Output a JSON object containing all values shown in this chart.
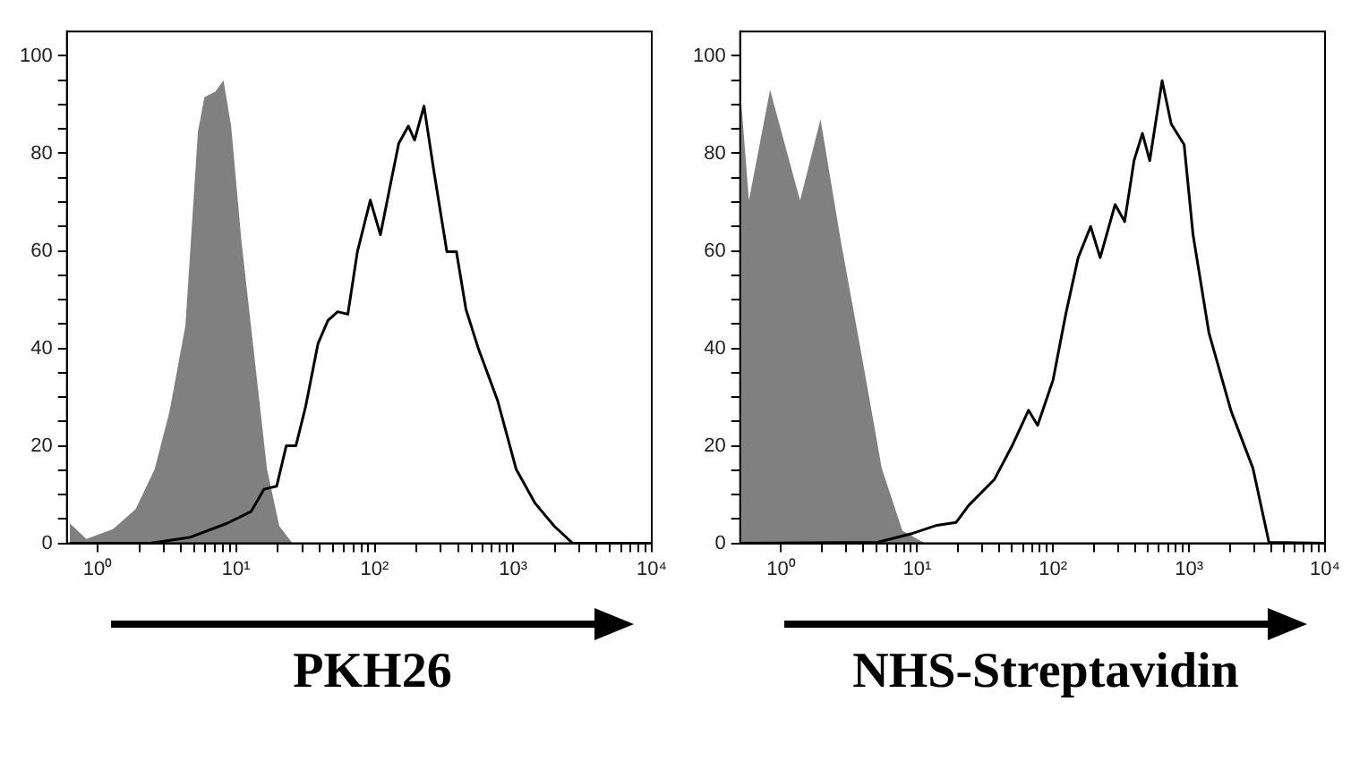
{
  "chart_data": [
    {
      "type": "area",
      "xlabel": "PKH26",
      "log": "x",
      "grid": false,
      "xlim": [
        0.63,
        10000
      ],
      "ylim": [
        0,
        105
      ],
      "xticks": [
        {
          "value": 1,
          "label": "10⁰"
        },
        {
          "value": 2,
          "label": null
        },
        {
          "value": 3,
          "label": null
        },
        {
          "value": 4,
          "label": null
        },
        {
          "value": 5,
          "label": null
        },
        {
          "value": 6,
          "label": null
        },
        {
          "value": 7,
          "label": null
        },
        {
          "value": 8,
          "label": null
        },
        {
          "value": 9,
          "label": null
        },
        {
          "value": 10,
          "label": "10¹"
        },
        {
          "value": 20,
          "label": null
        },
        {
          "value": 30,
          "label": null
        },
        {
          "value": 40,
          "label": null
        },
        {
          "value": 50,
          "label": null
        },
        {
          "value": 60,
          "label": null
        },
        {
          "value": 70,
          "label": null
        },
        {
          "value": 80,
          "label": null
        },
        {
          "value": 90,
          "label": null
        },
        {
          "value": 100,
          "label": "10²"
        },
        {
          "value": 200,
          "label": null
        },
        {
          "value": 300,
          "label": null
        },
        {
          "value": 400,
          "label": null
        },
        {
          "value": 500,
          "label": null
        },
        {
          "value": 600,
          "label": null
        },
        {
          "value": 700,
          "label": null
        },
        {
          "value": 800,
          "label": null
        },
        {
          "value": 900,
          "label": null
        },
        {
          "value": 1000,
          "label": "10³"
        },
        {
          "value": 2000,
          "label": null
        },
        {
          "value": 3000,
          "label": null
        },
        {
          "value": 4000,
          "label": null
        },
        {
          "value": 5000,
          "label": null
        },
        {
          "value": 6000,
          "label": null
        },
        {
          "value": 7000,
          "label": null
        },
        {
          "value": 8000,
          "label": null
        },
        {
          "value": 9000,
          "label": null
        },
        {
          "value": 10000,
          "label": "10⁴"
        }
      ],
      "yticks": [
        0,
        {
          "value": 5,
          "label": null
        },
        {
          "value": 10,
          "label": null
        },
        {
          "value": 15,
          "label": null
        },
        20,
        {
          "value": 25,
          "label": null
        },
        {
          "value": 30,
          "label": null
        },
        {
          "value": 35,
          "label": null
        },
        40,
        {
          "value": 45,
          "label": null
        },
        {
          "value": 50,
          "label": null
        },
        {
          "value": 55,
          "label": null
        },
        60,
        {
          "value": 65,
          "label": null
        },
        {
          "value": 70,
          "label": null
        },
        {
          "value": 75,
          "label": null
        },
        80,
        {
          "value": 85,
          "label": null
        },
        {
          "value": 90,
          "label": null
        },
        {
          "value": 95,
          "label": null
        },
        100
      ],
      "series": [
        {
          "color": "#808080",
          "x": [
            0.63,
            0.83,
            1.29,
            1.88,
            2.58,
            3.3,
            4.3,
            5.3,
            5.9,
            7.1,
            8.1,
            9.2,
            10.9,
            13.5,
            16.7,
            20.5,
            25.5
          ],
          "values": [
            4.1,
            0.9,
            2.9,
            7,
            15.2,
            27,
            44.6,
            84.5,
            91.5,
            92.7,
            95,
            85.6,
            62.2,
            38.7,
            15.2,
            3.5,
            0
          ]
        },
        {
          "type": "line",
          "color": "#000000",
          "x": [
            0.63,
            2.4,
            4.6,
            8.6,
            12.8,
            15.9,
            19.6,
            23,
            27,
            31.7,
            39,
            46,
            54,
            64,
            75,
            93,
            110,
            128,
            149,
            175,
            194,
            227,
            268,
            332,
            389,
            456,
            561,
            771,
            1050,
            1440,
            1980,
            2690,
            10000
          ],
          "values": [
            0,
            0,
            1.2,
            4.1,
            6.5,
            11.1,
            11.7,
            20,
            20,
            28,
            41,
            45.7,
            47.5,
            47,
            59.8,
            70.4,
            63.3,
            72.7,
            82,
            85.6,
            82.7,
            89.7,
            76.2,
            59.8,
            59.8,
            48,
            39.9,
            29.3,
            15.2,
            8.2,
            3.5,
            0,
            0
          ]
        }
      ]
    },
    {
      "type": "area",
      "xlabel": "NHS-Streptavidin",
      "log": "x",
      "grid": false,
      "xlim": [
        0.5,
        10000
      ],
      "ylim": [
        0,
        105
      ],
      "xticks": [
        {
          "value": 1,
          "label": "10⁰"
        },
        {
          "value": 2,
          "label": null
        },
        {
          "value": 3,
          "label": null
        },
        {
          "value": 4,
          "label": null
        },
        {
          "value": 5,
          "label": null
        },
        {
          "value": 6,
          "label": null
        },
        {
          "value": 7,
          "label": null
        },
        {
          "value": 8,
          "label": null
        },
        {
          "value": 9,
          "label": null
        },
        {
          "value": 10,
          "label": "10¹"
        },
        {
          "value": 20,
          "label": null
        },
        {
          "value": 30,
          "label": null
        },
        {
          "value": 40,
          "label": null
        },
        {
          "value": 50,
          "label": null
        },
        {
          "value": 60,
          "label": null
        },
        {
          "value": 70,
          "label": null
        },
        {
          "value": 80,
          "label": null
        },
        {
          "value": 90,
          "label": null
        },
        {
          "value": 100,
          "label": "10²"
        },
        {
          "value": 200,
          "label": null
        },
        {
          "value": 300,
          "label": null
        },
        {
          "value": 400,
          "label": null
        },
        {
          "value": 500,
          "label": null
        },
        {
          "value": 600,
          "label": null
        },
        {
          "value": 700,
          "label": null
        },
        {
          "value": 800,
          "label": null
        },
        {
          "value": 900,
          "label": null
        },
        {
          "value": 1000,
          "label": "10³"
        },
        {
          "value": 2000,
          "label": null
        },
        {
          "value": 3000,
          "label": null
        },
        {
          "value": 4000,
          "label": null
        },
        {
          "value": 5000,
          "label": null
        },
        {
          "value": 6000,
          "label": null
        },
        {
          "value": 7000,
          "label": null
        },
        {
          "value": 8000,
          "label": null
        },
        {
          "value": 9000,
          "label": null
        },
        {
          "value": 10000,
          "label": "10⁴"
        }
      ],
      "yticks": [
        0,
        {
          "value": 5,
          "label": null
        },
        {
          "value": 10,
          "label": null
        },
        {
          "value": 15,
          "label": null
        },
        20,
        {
          "value": 25,
          "label": null
        },
        {
          "value": 30,
          "label": null
        },
        {
          "value": 35,
          "label": null
        },
        40,
        {
          "value": 45,
          "label": null
        },
        {
          "value": 50,
          "label": null
        },
        {
          "value": 55,
          "label": null
        },
        60,
        {
          "value": 65,
          "label": null
        },
        {
          "value": 70,
          "label": null
        },
        {
          "value": 75,
          "label": null
        },
        80,
        {
          "value": 85,
          "label": null
        },
        {
          "value": 90,
          "label": null
        },
        {
          "value": 95,
          "label": null
        },
        100
      ],
      "series": [
        {
          "color": "#808080",
          "x": [
            0.5,
            0.58,
            0.83,
            1.38,
            1.95,
            2.75,
            3.9,
            5.5,
            7.8,
            11.4
          ],
          "values": [
            93.5,
            70.3,
            93,
            70.3,
            87,
            62,
            38.8,
            15.4,
            2.6,
            0
          ]
        },
        {
          "type": "line",
          "color": "#000000",
          "x": [
            0.5,
            5.1,
            9.2,
            14,
            19.4,
            24,
            37,
            50,
            66,
            77,
            100,
            124,
            153,
            189,
            222,
            286,
            336,
            394,
            454,
            514,
            634,
            740,
            920,
            1070,
            1400,
            2040,
            2950,
            3870,
            10000
          ],
          "values": [
            0,
            0.2,
            2,
            3.7,
            4.3,
            7.8,
            13.1,
            20,
            27.3,
            24.2,
            33.5,
            47,
            58.6,
            65,
            58.6,
            69.5,
            66,
            78.5,
            84.1,
            78.5,
            94.9,
            86,
            81.8,
            63.3,
            43.2,
            27.1,
            15.4,
            0.2,
            0
          ]
        }
      ]
    }
  ]
}
